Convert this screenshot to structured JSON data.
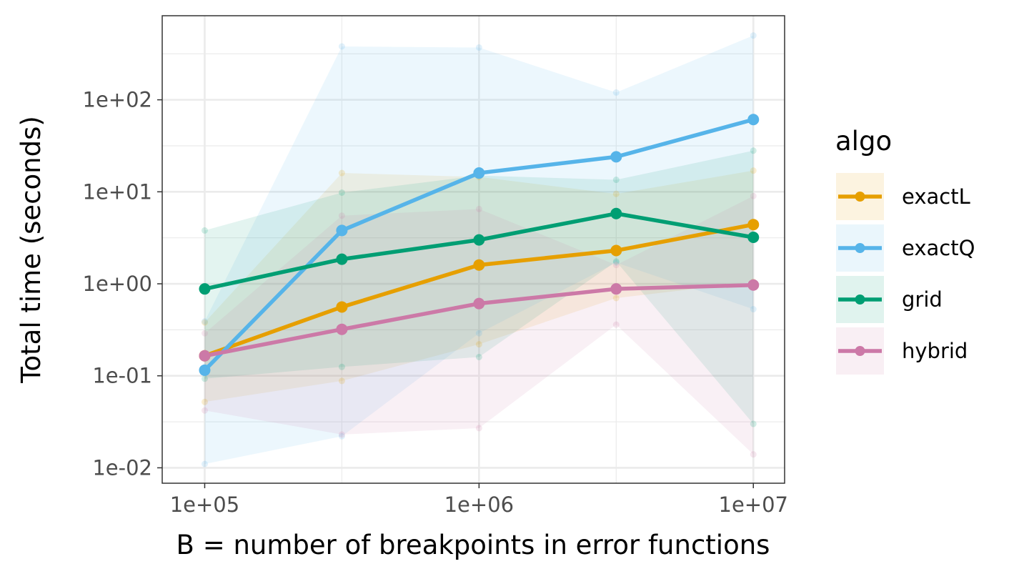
{
  "chart_data": {
    "type": "line",
    "xlabel": "B = number of breakpoints in error functions",
    "ylabel": "Total time (seconds)",
    "x_scale": "log10",
    "y_scale": "log10",
    "xlim": [
      70000,
      13000000
    ],
    "ylim": [
      0.0068,
      820
    ],
    "x_ticks": [
      100000,
      1000000,
      10000000
    ],
    "x_tick_labels": [
      "1e+05",
      "1e+06",
      "1e+07"
    ],
    "y_ticks": [
      0.01,
      0.1,
      1,
      10,
      100
    ],
    "y_tick_labels": [
      "1e-02",
      "1e-01",
      "1e+00",
      "1e+01",
      "1e+02"
    ],
    "grid": true,
    "legend": {
      "title": "algo",
      "position": "right"
    },
    "x": [
      100000,
      316228,
      1000000,
      3162278,
      10000000
    ],
    "series": [
      {
        "name": "exactL",
        "color": "#E69F00",
        "values": [
          0.165,
          0.56,
          1.6,
          2.3,
          4.4
        ],
        "band_min": [
          0.052,
          0.088,
          0.22,
          0.7,
          1.05
        ],
        "band_max": [
          0.38,
          16.0,
          14.5,
          9.5,
          17.0
        ]
      },
      {
        "name": "exactQ",
        "color": "#56B4E9",
        "values": [
          0.115,
          3.8,
          16.0,
          24.0,
          61.0
        ],
        "band_min": [
          0.011,
          0.022,
          0.29,
          1.7,
          0.53
        ],
        "band_max": [
          0.39,
          380.0,
          370.0,
          120.0,
          500.0
        ]
      },
      {
        "name": "grid",
        "color": "#009E73",
        "values": [
          0.88,
          1.85,
          3.0,
          5.8,
          3.2
        ],
        "band_min": [
          0.093,
          0.125,
          0.16,
          1.75,
          0.03
        ],
        "band_max": [
          3.8,
          9.8,
          15.0,
          13.5,
          28.0
        ]
      },
      {
        "name": "hybrid",
        "color": "#CC79A7",
        "values": [
          0.165,
          0.32,
          0.61,
          0.88,
          0.97
        ],
        "band_min": [
          0.042,
          0.023,
          0.027,
          0.36,
          0.014
        ],
        "band_max": [
          0.29,
          5.5,
          6.5,
          1.6,
          9.0
        ]
      }
    ]
  }
}
